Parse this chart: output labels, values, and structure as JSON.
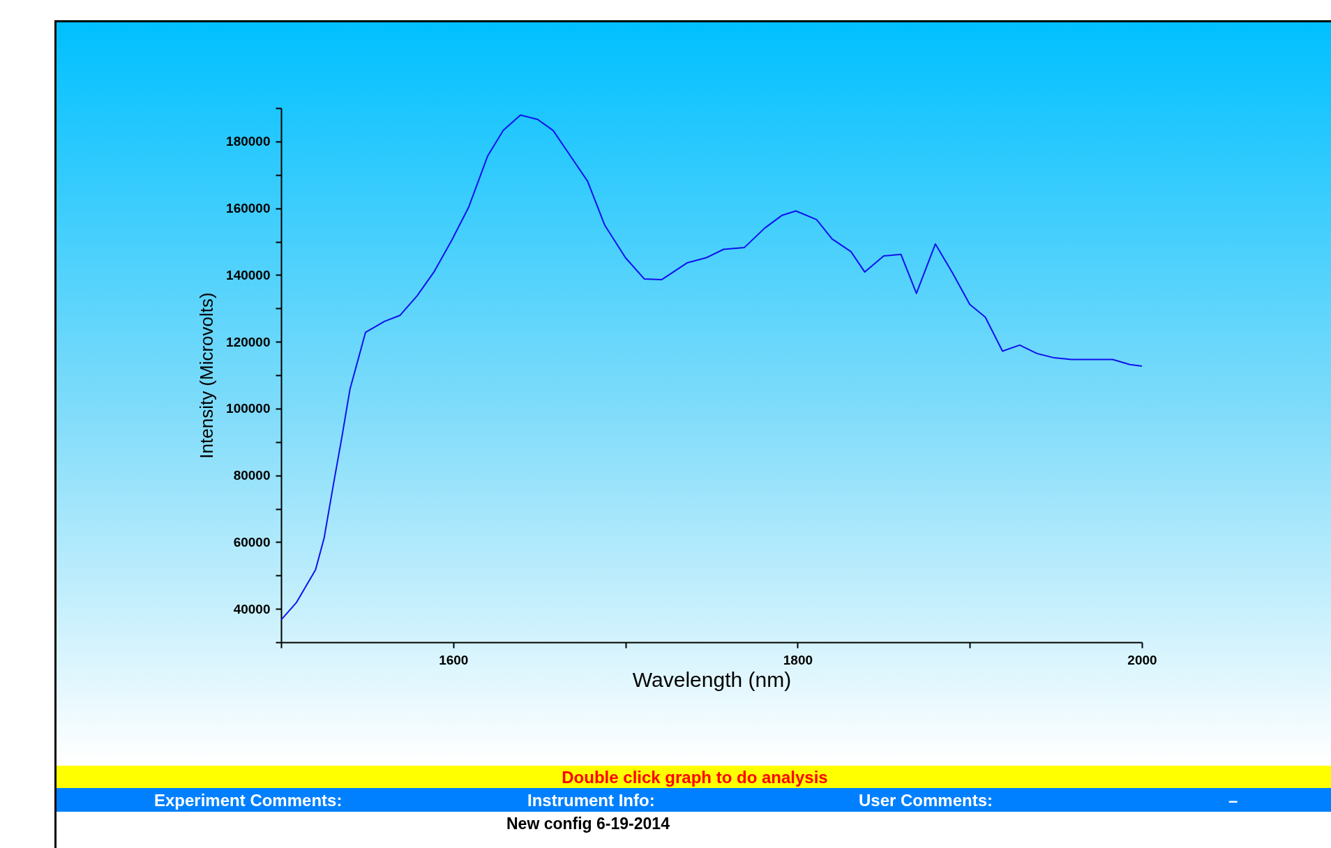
{
  "chart_data": {
    "type": "line",
    "xlabel": "Wavelength (nm)",
    "ylabel": "Intensity (Microvolts)",
    "x": [
      1500,
      1509,
      1520,
      1525,
      1531,
      1535,
      1540,
      1549,
      1560,
      1569,
      1579,
      1589,
      1599,
      1609,
      1620,
      1629,
      1639,
      1649,
      1658,
      1668,
      1678,
      1688,
      1700,
      1711,
      1721,
      1736,
      1747,
      1757,
      1769,
      1781,
      1791,
      1799,
      1811,
      1820,
      1831,
      1839,
      1850,
      1860,
      1869,
      1880,
      1890,
      1900,
      1909,
      1919,
      1929,
      1939,
      1949,
      1959,
      1983,
      1993,
      2000
    ],
    "series": [
      {
        "color": "#1010f0",
        "values": [
          36700,
          42000,
          51700,
          61300,
          79100,
          90600,
          105800,
          122800,
          126100,
          127900,
          133800,
          141100,
          150300,
          160400,
          175700,
          183300,
          187900,
          186600,
          183300,
          175700,
          168100,
          154900,
          145200,
          138800,
          138600,
          143700,
          145200,
          147700,
          148200,
          154100,
          157900,
          159200,
          156600,
          150800,
          147000,
          140900,
          145700,
          146200,
          134500,
          149300,
          140600,
          131200,
          127400,
          117200,
          119000,
          116500,
          115200,
          114700,
          114700,
          113200,
          112700
        ]
      }
    ],
    "xlim": [
      1500,
      2000
    ],
    "xticks": [
      {
        "value": 1500,
        "label": null
      },
      1600,
      {
        "value": 1700,
        "label": null
      },
      1800,
      {
        "value": 1900,
        "label": null
      },
      2000
    ],
    "ylim": [
      30000,
      190000
    ],
    "yticks": [
      {
        "value": 30000,
        "label": null
      },
      40000,
      {
        "value": 50000,
        "label": null
      },
      60000,
      {
        "value": 70000,
        "label": null
      },
      80000,
      {
        "value": 90000,
        "label": null
      },
      100000,
      {
        "value": 110000,
        "label": null
      },
      120000,
      {
        "value": 130000,
        "label": null
      },
      140000,
      {
        "value": 150000,
        "label": null
      },
      160000,
      {
        "value": 170000,
        "label": null
      },
      180000,
      {
        "value": 190000,
        "label": null
      }
    ],
    "grid": false,
    "legend": false,
    "marker": "none",
    "line_style": "solid",
    "annotations": [
      "Double click graph to do analysis",
      "Experiment Comments:",
      "Instrument Info:",
      "User Comments:",
      "–",
      "New config 6-19-2014"
    ]
  }
}
